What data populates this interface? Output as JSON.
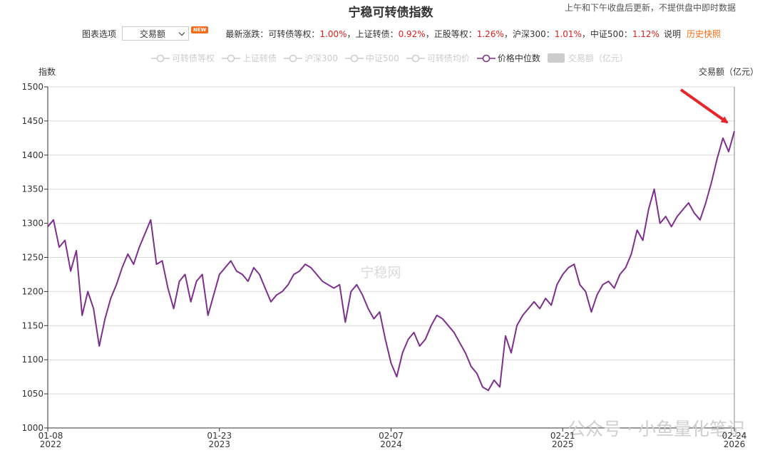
{
  "header": {
    "note": "上午和下午收盘后更新，不提供盘中即时数据",
    "options_label": "图表选项",
    "selected_option": "交易额",
    "badge": "NEW",
    "changes_prefix": "最新涨跌：",
    "separator": "，",
    "changes": [
      {
        "name": "可转债等权：",
        "value": 1.0,
        "label": "1.00%"
      },
      {
        "name": "上证转债：",
        "value": 0.92,
        "label": "0.92%"
      },
      {
        "name": "正股等权：",
        "value": 1.26,
        "label": "1.26%"
      },
      {
        "name": "沪深300：",
        "value": 1.01,
        "label": "1.01%"
      },
      {
        "name": "中证500：",
        "value": 1.12,
        "label": "1.12%"
      }
    ],
    "explain_link": "说明",
    "history_link": "历史快照"
  },
  "chart_data": {
    "type": "line",
    "title": "宁稳可转债指数",
    "y_label": "指数",
    "y2_label": "交易额（亿元）",
    "watermarks": [
      "宁稳网",
      "公众号 · 小鱼量化笔记"
    ],
    "legend_inactive": [
      "可转债等权",
      "上证转债",
      "沪深300",
      "中证500",
      "可转债均价"
    ],
    "legend_bar": "交易额（亿元）",
    "categories": [
      "01-08\n2022",
      null,
      null,
      null,
      null,
      null,
      null,
      null,
      null,
      null,
      null,
      null,
      null,
      null,
      null,
      null,
      null,
      null,
      null,
      null,
      null,
      null,
      null,
      null,
      null,
      null,
      null,
      null,
      null,
      null,
      "01-23\n2023",
      null,
      null,
      null,
      null,
      null,
      null,
      null,
      null,
      null,
      null,
      null,
      null,
      null,
      null,
      null,
      null,
      null,
      null,
      null,
      null,
      null,
      null,
      null,
      null,
      null,
      null,
      null,
      null,
      null,
      "02-07\n2024",
      null,
      null,
      null,
      null,
      null,
      null,
      null,
      null,
      null,
      null,
      null,
      null,
      null,
      null,
      null,
      null,
      null,
      null,
      null,
      null,
      null,
      null,
      null,
      null,
      null,
      null,
      null,
      null,
      null,
      "02-21\n2025",
      null,
      null,
      null,
      null,
      null,
      null,
      null,
      null,
      null,
      null,
      null,
      null,
      null,
      null,
      null,
      null,
      null,
      null,
      null,
      null,
      null,
      null,
      null,
      null,
      null,
      null,
      null,
      null,
      null,
      "02-24\n2026"
    ],
    "series": [
      {
        "name": "价格中位数",
        "color": "#7e2f8e",
        "values": [
          1295,
          1305,
          1265,
          1275,
          1230,
          1260,
          1165,
          1200,
          1175,
          1120,
          1160,
          1190,
          1210,
          1235,
          1255,
          1240,
          1265,
          1285,
          1305,
          1240,
          1245,
          1205,
          1175,
          1215,
          1225,
          1185,
          1215,
          1225,
          1165,
          1195,
          1225,
          1235,
          1245,
          1230,
          1225,
          1215,
          1235,
          1225,
          1205,
          1185,
          1195,
          1200,
          1210,
          1225,
          1230,
          1240,
          1235,
          1225,
          1215,
          1210,
          1205,
          1210,
          1155,
          1200,
          1210,
          1195,
          1175,
          1160,
          1170,
          1130,
          1095,
          1075,
          1110,
          1130,
          1140,
          1120,
          1130,
          1150,
          1165,
          1160,
          1150,
          1140,
          1125,
          1110,
          1090,
          1080,
          1060,
          1055,
          1070,
          1060,
          1135,
          1110,
          1150,
          1165,
          1175,
          1185,
          1175,
          1190,
          1180,
          1210,
          1225,
          1235,
          1240,
          1210,
          1200,
          1170,
          1195,
          1210,
          1215,
          1205,
          1225,
          1235,
          1255,
          1290,
          1275,
          1320,
          1350,
          1300,
          1310,
          1295,
          1310,
          1320,
          1330,
          1315,
          1305,
          1330,
          1360,
          1395,
          1425,
          1405,
          1435
        ]
      }
    ],
    "ylim": [
      1000,
      1500
    ],
    "yticks": [
      1000,
      1050,
      1100,
      1150,
      1200,
      1250,
      1300,
      1350,
      1400,
      1450,
      1500
    ],
    "grid": true
  }
}
